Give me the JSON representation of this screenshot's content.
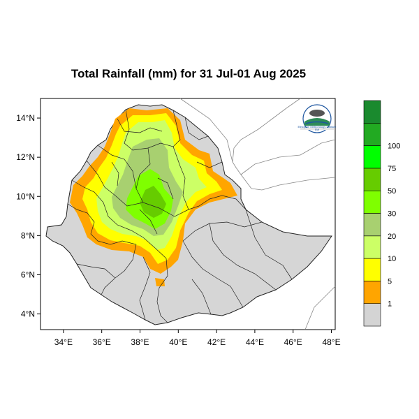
{
  "title": "Total Rainfall (mm) for 31 Jul-01 Aug 2025",
  "map": {
    "lon_ticks": [
      "34°E",
      "36°E",
      "38°E",
      "40°E",
      "42°E",
      "44°E",
      "46°E",
      "48°E"
    ],
    "lat_ticks": [
      "4°N",
      "6°N",
      "8°N",
      "10°N",
      "12°N",
      "14°N"
    ],
    "lon_range": [
      32.8,
      48.2
    ],
    "lat_range": [
      3.2,
      15.0
    ]
  },
  "colorbar": {
    "labels": [
      "1",
      "5",
      "10",
      "20",
      "30",
      "50",
      "75",
      "100"
    ],
    "colors": [
      "#d4d4d4",
      "#ffa500",
      "#ffff00",
      "#ccff66",
      "#a8d070",
      "#7fff00",
      "#66cc00",
      "#00ff00",
      "#22aa22",
      "#1a8a2e"
    ]
  },
  "logo": {
    "text": "Ethiopian Meteorology Institute",
    "sub": "EMI"
  },
  "colors": {
    "country_fill": "#d6d6d6",
    "border": "#222222",
    "neighbor_border": "#888888"
  }
}
